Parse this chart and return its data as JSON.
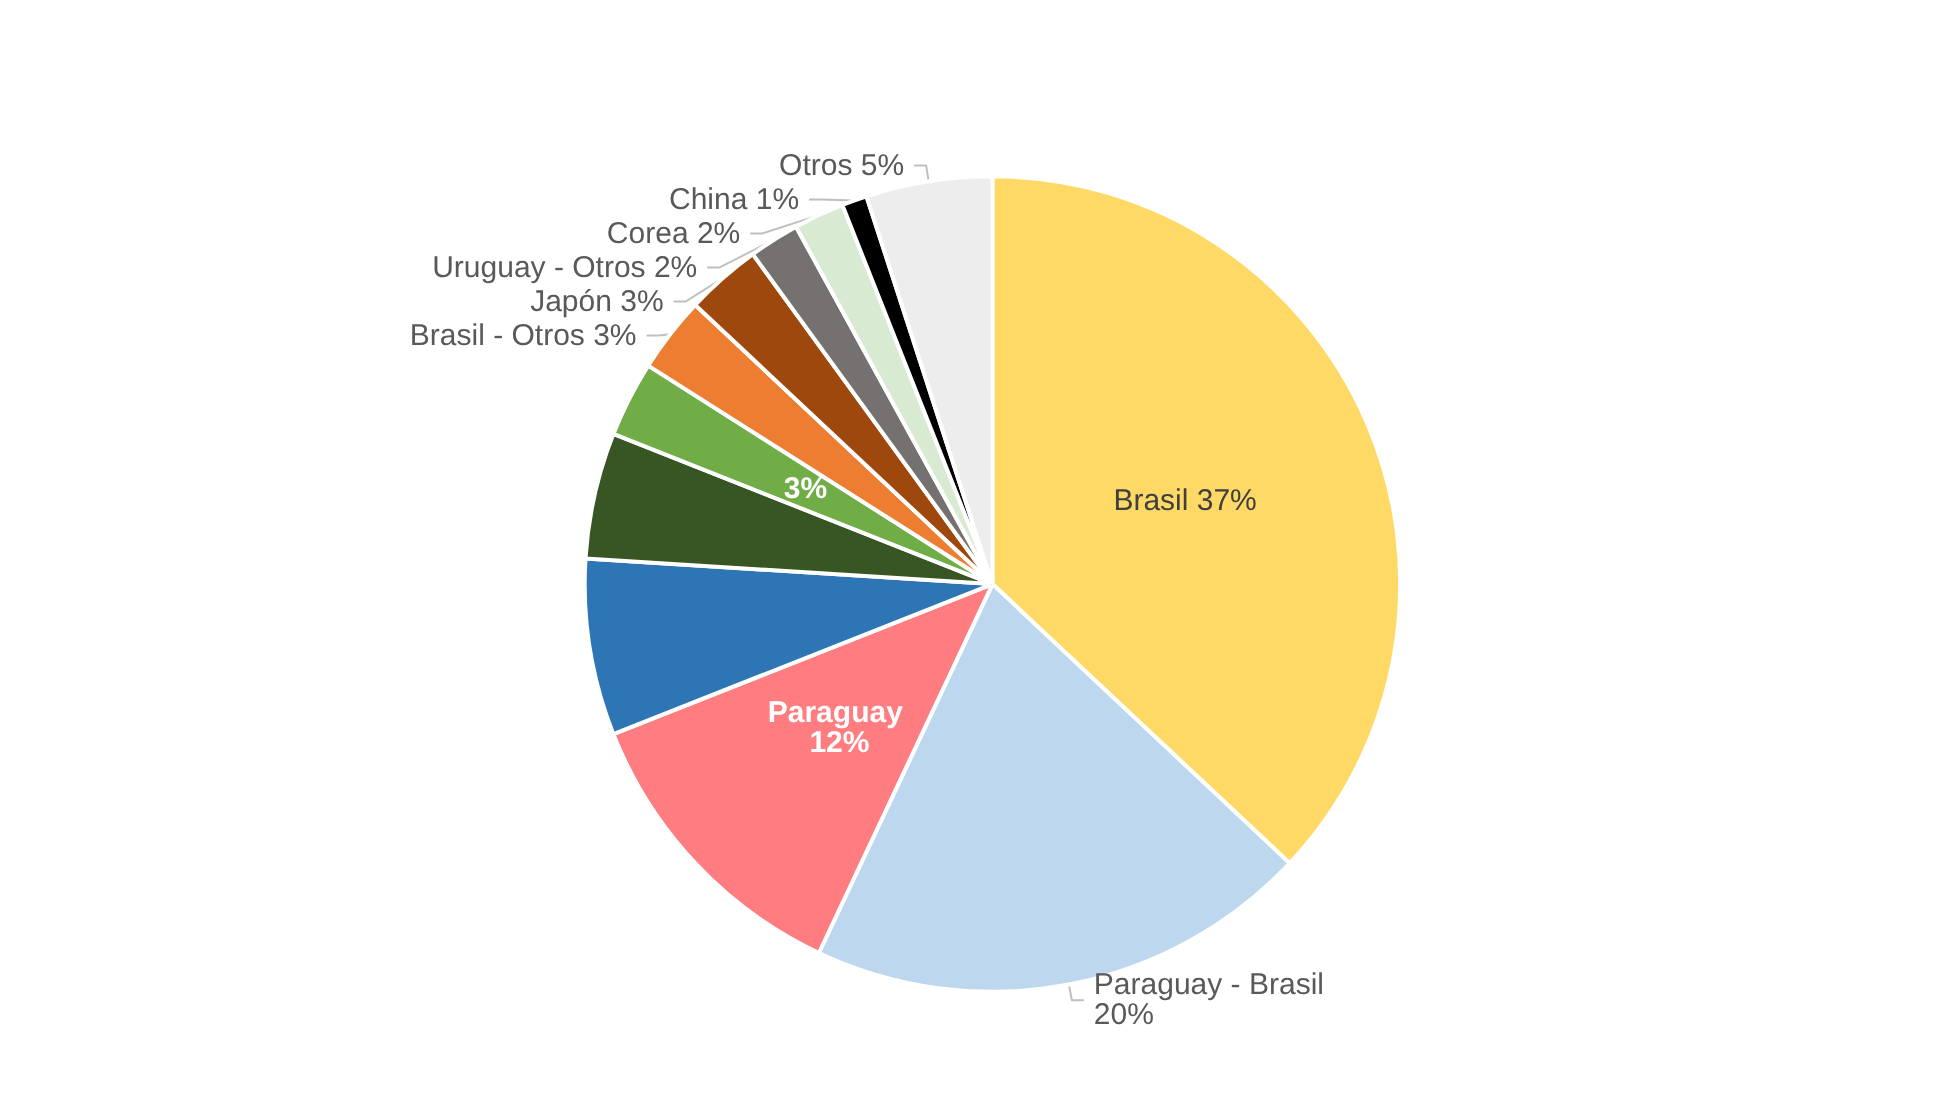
{
  "chart_data": {
    "type": "pie",
    "categories": [
      "Brasil",
      "Paraguay - Brasil",
      "Paraguay",
      null,
      null,
      null,
      "Brasil - Otros",
      "Japón",
      "Uruguay - Otros",
      "Corea",
      "China",
      "Otros"
    ],
    "values": [
      37,
      20,
      12,
      7,
      5,
      3,
      3,
      3,
      2,
      2,
      1,
      5
    ],
    "value_labels": [
      "37%",
      "20%",
      "12%",
      null,
      null,
      "3%",
      "3%",
      "3%",
      "2%",
      "2%",
      "1%",
      "5%"
    ],
    "colors": [
      "#ffd966",
      "#bdd7ee",
      "#ff7c80",
      "#2e75b6",
      "#375623",
      "#70ad47",
      "#ed7d31",
      "#9e480e",
      "#767171",
      "#d9ead3",
      "#000000",
      "#ededed"
    ],
    "legend": false
  }
}
